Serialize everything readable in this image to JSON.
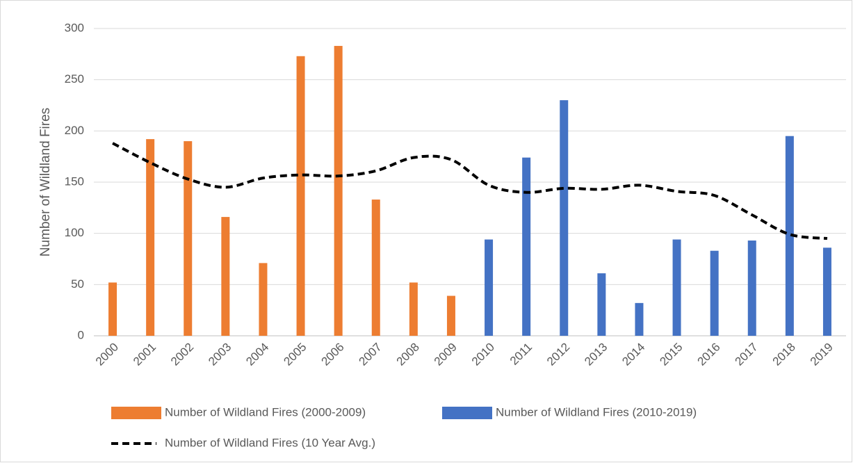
{
  "chart_data": {
    "type": "bar",
    "ylabel": "Number of Wildland Fires",
    "categories": [
      "2000",
      "2001",
      "2002",
      "2003",
      "2004",
      "2005",
      "2006",
      "2007",
      "2008",
      "2009",
      "2010",
      "2011",
      "2012",
      "2013",
      "2014",
      "2015",
      "2016",
      "2017",
      "2018",
      "2019"
    ],
    "series": [
      {
        "name": "Number of Wildland Fires (2000-2009)",
        "type": "bar",
        "color": "#ed7d31",
        "values": [
          52,
          192,
          190,
          116,
          71,
          273,
          283,
          133,
          52,
          39,
          null,
          null,
          null,
          null,
          null,
          null,
          null,
          null,
          null,
          null
        ]
      },
      {
        "name": "Number of Wildland Fires (2010-2019)",
        "type": "bar",
        "color": "#4472c4",
        "values": [
          null,
          null,
          null,
          null,
          null,
          null,
          null,
          null,
          null,
          null,
          94,
          174,
          230,
          61,
          32,
          94,
          83,
          93,
          195,
          86
        ]
      },
      {
        "name": "Number of Wildland Fires (10 Year Avg.)",
        "type": "line",
        "color": "#000000",
        "line_style": "dashed",
        "values": [
          188,
          169,
          153,
          145,
          154,
          157,
          156,
          161,
          174,
          172,
          147,
          140,
          144,
          143,
          147,
          141,
          137,
          118,
          99,
          95
        ]
      }
    ],
    "ylim": [
      0,
      300
    ],
    "yticks": [
      0,
      50,
      100,
      150,
      200,
      250,
      300
    ],
    "grid": true,
    "legend": "bottom"
  }
}
